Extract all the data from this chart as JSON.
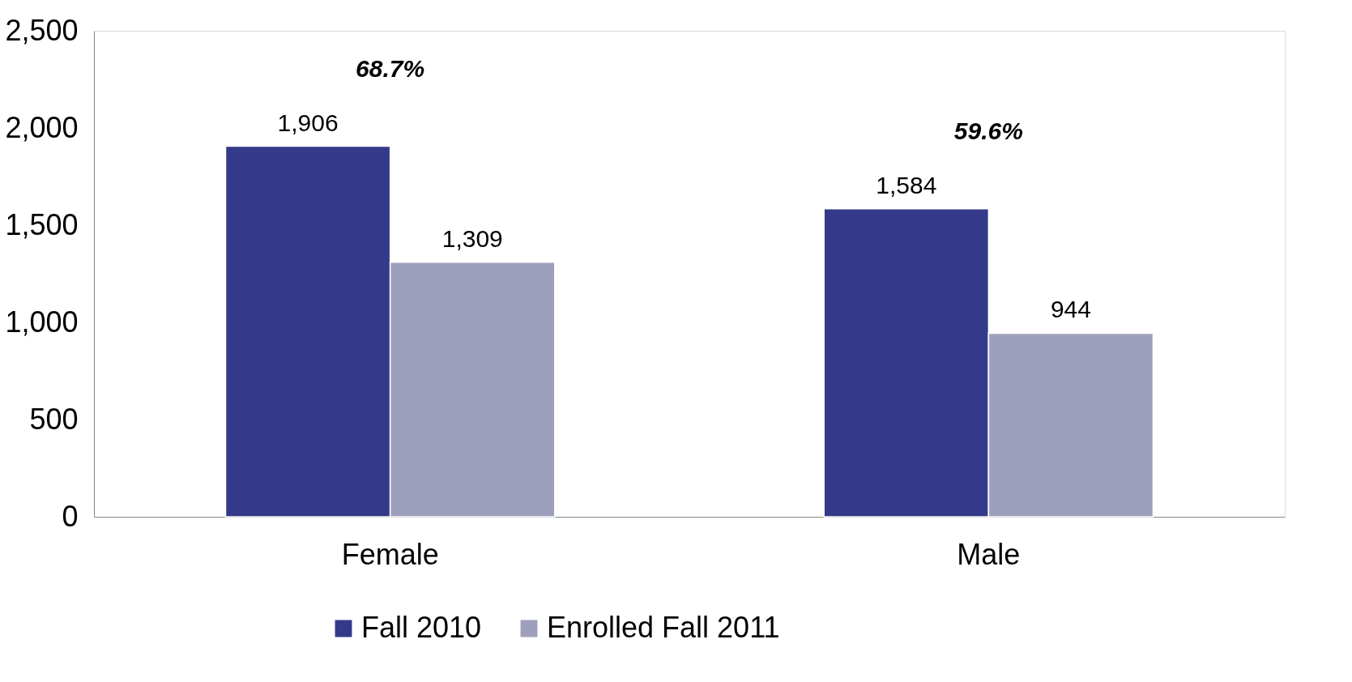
{
  "chart_data": {
    "type": "bar",
    "categories": [
      "Female",
      "Male"
    ],
    "series": [
      {
        "name": "Fall 2010",
        "color": "#343989",
        "values": [
          1906,
          1584
        ],
        "value_labels": [
          "1,906",
          "1,584"
        ]
      },
      {
        "name": "Enrolled Fall 2011",
        "color": "#9d9fbd",
        "values": [
          1309,
          944
        ],
        "value_labels": [
          "1,309",
          "944"
        ]
      }
    ],
    "ylim": [
      0,
      2500
    ],
    "yticks": [
      0,
      {
        "value": 500,
        "label": "500"
      },
      {
        "value": 1000,
        "label": "1,000"
      },
      {
        "value": 1500,
        "label": "1,500"
      },
      {
        "value": 2000,
        "label": "2,000"
      },
      {
        "value": 2500,
        "label": "2,500"
      }
    ],
    "grid": false,
    "legend": "bottom",
    "annotations": [
      "68.7%",
      "59.6%"
    ]
  }
}
